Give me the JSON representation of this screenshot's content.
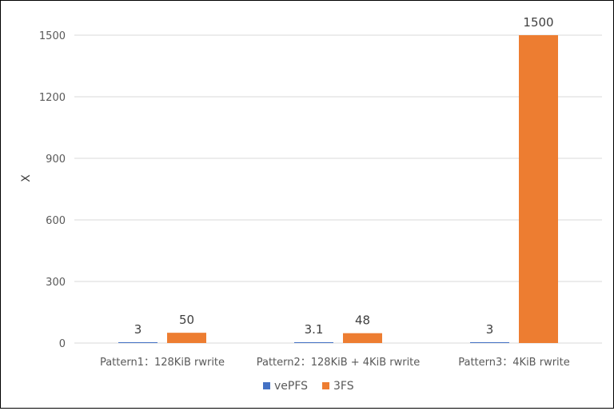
{
  "chart_data": {
    "type": "bar",
    "title": "",
    "xlabel": "",
    "ylabel": "X",
    "ylim": [
      0,
      1500
    ],
    "yticks": [
      0,
      300,
      600,
      900,
      1200,
      1500
    ],
    "grid": true,
    "legend_position": "bottom",
    "categories": [
      "Pattern1：128KiB rwrite",
      "Pattern2：128KiB + 4KiB rwrite",
      "Pattern3：4KiB rwrite"
    ],
    "series": [
      {
        "name": "vePFS",
        "color": "#4472c4",
        "values": [
          3,
          3.1,
          3
        ],
        "labels": [
          "3",
          "3.1",
          "3"
        ]
      },
      {
        "name": "3FS",
        "color": "#ed7d31",
        "values": [
          50,
          48,
          1500
        ],
        "labels": [
          "50",
          "48",
          "1500"
        ]
      }
    ]
  }
}
